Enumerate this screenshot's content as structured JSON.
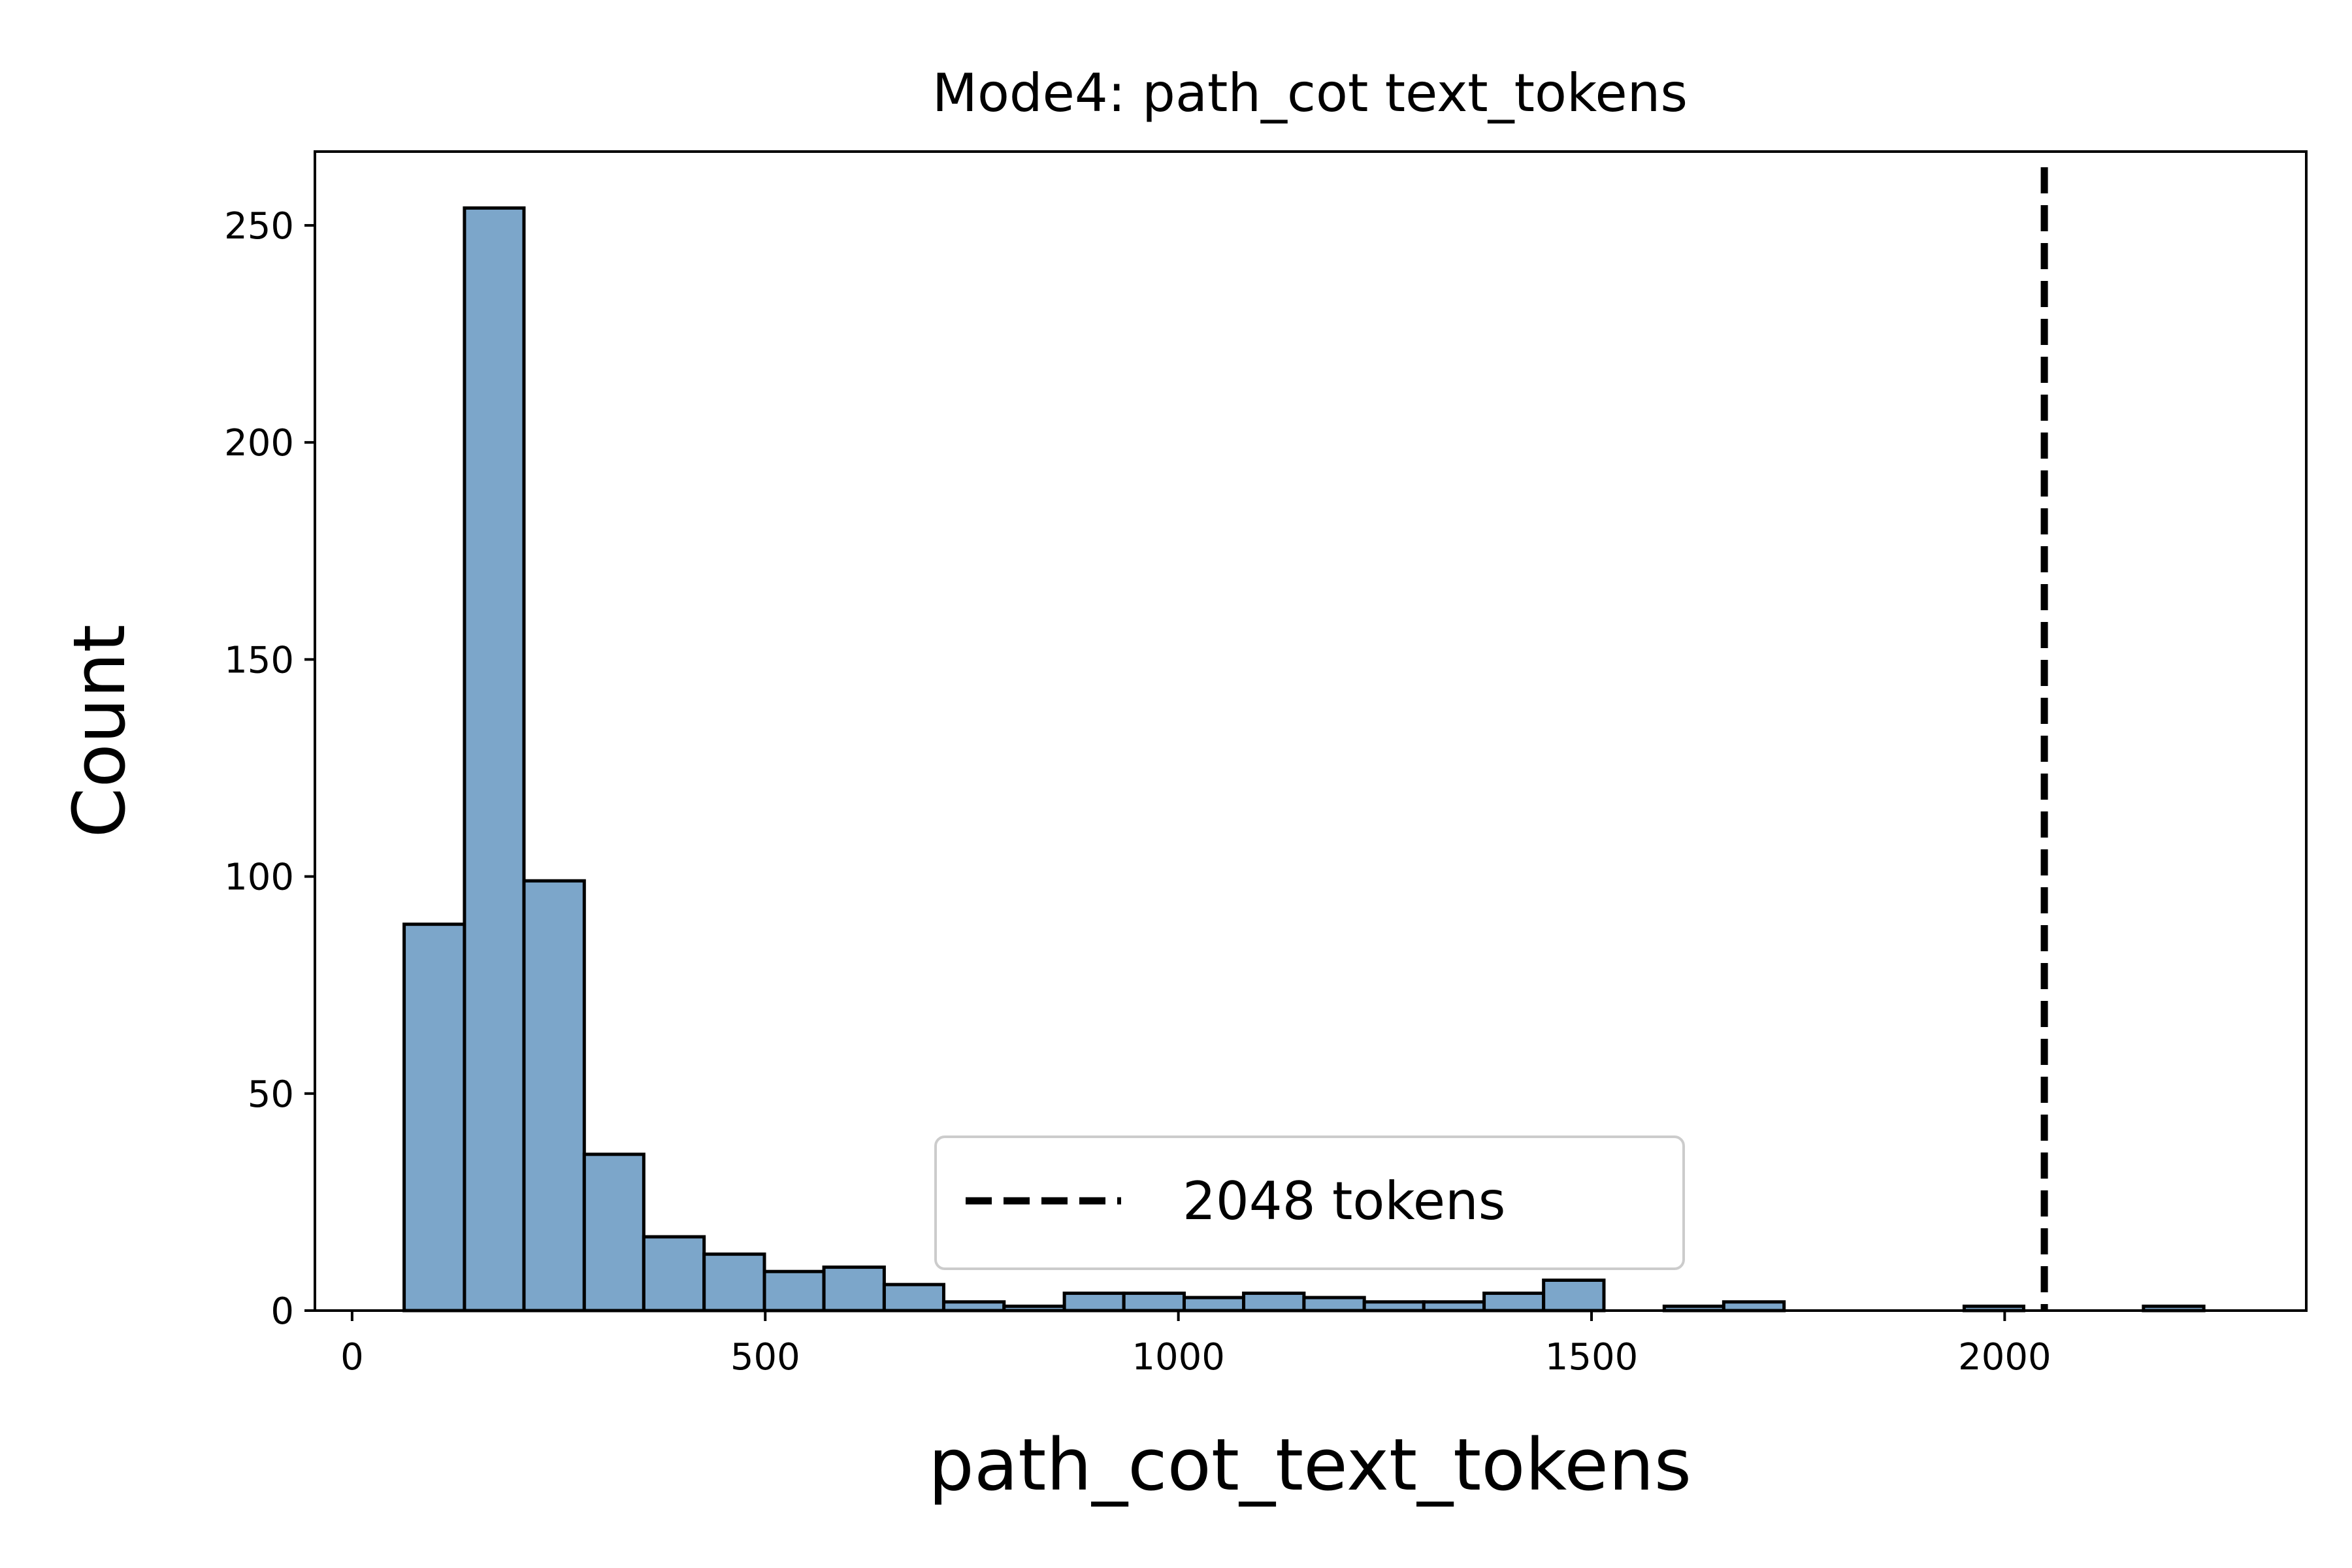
{
  "chart_data": {
    "type": "bar",
    "title": "Mode4: path_cot text_tokens",
    "xlabel": "path_cot_text_tokens",
    "ylabel": "Count",
    "xlim": [
      -45,
      2365
    ],
    "ylim": [
      0,
      267
    ],
    "x_ticks": [
      0,
      500,
      1000,
      1500,
      2000
    ],
    "y_ticks": [
      0,
      50,
      100,
      150,
      200,
      250
    ],
    "bar_color": "#7ca6ca",
    "edge_color": "#000000",
    "bins": [
      {
        "start": 63,
        "end": 136,
        "count": 89
      },
      {
        "start": 136,
        "end": 208,
        "count": 254
      },
      {
        "start": 208,
        "end": 281,
        "count": 99
      },
      {
        "start": 281,
        "end": 353,
        "count": 36
      },
      {
        "start": 353,
        "end": 426,
        "count": 17
      },
      {
        "start": 426,
        "end": 499,
        "count": 13
      },
      {
        "start": 499,
        "end": 571,
        "count": 9
      },
      {
        "start": 571,
        "end": 644,
        "count": 10
      },
      {
        "start": 644,
        "end": 716,
        "count": 6
      },
      {
        "start": 716,
        "end": 789,
        "count": 2
      },
      {
        "start": 789,
        "end": 862,
        "count": 1
      },
      {
        "start": 862,
        "end": 934,
        "count": 4
      },
      {
        "start": 934,
        "end": 1007,
        "count": 4
      },
      {
        "start": 1007,
        "end": 1079,
        "count": 3
      },
      {
        "start": 1079,
        "end": 1152,
        "count": 4
      },
      {
        "start": 1152,
        "end": 1225,
        "count": 3
      },
      {
        "start": 1225,
        "end": 1297,
        "count": 2
      },
      {
        "start": 1297,
        "end": 1370,
        "count": 2
      },
      {
        "start": 1370,
        "end": 1442,
        "count": 4
      },
      {
        "start": 1442,
        "end": 1515,
        "count": 7
      },
      {
        "start": 1515,
        "end": 1588,
        "count": 0
      },
      {
        "start": 1588,
        "end": 1660,
        "count": 1
      },
      {
        "start": 1660,
        "end": 1733,
        "count": 2
      },
      {
        "start": 1733,
        "end": 1805,
        "count": 0
      },
      {
        "start": 1805,
        "end": 1878,
        "count": 0
      },
      {
        "start": 1878,
        "end": 1951,
        "count": 0
      },
      {
        "start": 1951,
        "end": 2023,
        "count": 1
      },
      {
        "start": 2023,
        "end": 2096,
        "count": 0
      },
      {
        "start": 2096,
        "end": 2168,
        "count": 0
      },
      {
        "start": 2168,
        "end": 2241,
        "count": 1
      }
    ],
    "reference_line": {
      "x": 2048,
      "style": "dashed",
      "color": "#000000",
      "label": "2048 tokens"
    },
    "legend": {
      "placement": "lower-center",
      "entries": [
        "2048 tokens"
      ]
    }
  }
}
